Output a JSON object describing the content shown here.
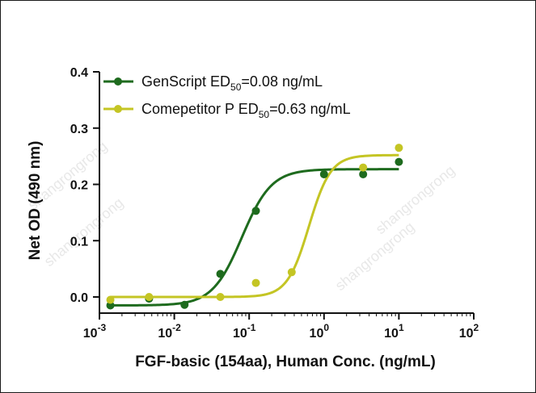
{
  "chart_data": {
    "type": "scatter",
    "xlabel": "FGF-basic (154aa), Human Conc.  (ng/mL)",
    "ylabel": "Net OD (490 nm)",
    "x_scale": "log",
    "xlim": [
      0.001,
      100
    ],
    "ylim": [
      -0.03,
      0.4
    ],
    "x_ticks": [
      0.001,
      0.01,
      0.1,
      1,
      10,
      100
    ],
    "x_tick_labels": [
      {
        "base": "10",
        "exp": "-3"
      },
      {
        "base": "10",
        "exp": "-2"
      },
      {
        "base": "10",
        "exp": "-1"
      },
      {
        "base": "10",
        "exp": "0"
      },
      {
        "base": "10",
        "exp": "1"
      },
      {
        "base": "10",
        "exp": "2"
      }
    ],
    "y_ticks": [
      0.0,
      0.1,
      0.2,
      0.3,
      0.4
    ],
    "y_tick_labels": [
      "0.0",
      "0.1",
      "0.2",
      "0.3",
      "0.4"
    ],
    "grid": false,
    "legend_position": "top-left",
    "watermark": "shangrongrong",
    "series": [
      {
        "name_parts": {
          "pre": "GenScript ED",
          "sub": "50",
          "post": "=0.08 ng/mL"
        },
        "color": "#1e6b1e",
        "x": [
          0.0014,
          0.0046,
          0.0137,
          0.0412,
          0.123,
          1.0,
          3.33,
          10.0
        ],
        "y": [
          -0.015,
          -0.003,
          -0.014,
          0.041,
          0.153,
          0.218,
          0.218,
          0.24
        ],
        "fit": {
          "bottom": -0.015,
          "top": 0.227,
          "ec50": 0.08,
          "hill": 2.2
        }
      },
      {
        "name_parts": {
          "pre": "Comepetitor P ED",
          "sub": "50",
          "post": "=0.63 ng/mL"
        },
        "color": "#c4c524",
        "x": [
          0.0014,
          0.0046,
          0.0412,
          0.123,
          0.37,
          3.33,
          10.0
        ],
        "y": [
          -0.005,
          0.0,
          0.0,
          0.025,
          0.044,
          0.23,
          0.265
        ],
        "fit": {
          "bottom": 0.0,
          "top": 0.252,
          "ec50": 0.63,
          "hill": 3.0
        }
      }
    ]
  }
}
